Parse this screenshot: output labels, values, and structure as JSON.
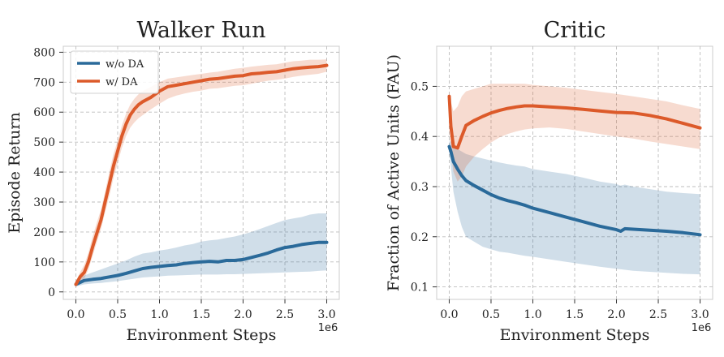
{
  "chart_data": [
    {
      "type": "line",
      "title": "Walker Run",
      "xlabel": "Environment Steps",
      "ylabel": "Episode Return",
      "x_offset_label": "1e6",
      "xlim": [
        -0.15,
        3.15
      ],
      "ylim": [
        -25,
        820
      ],
      "xticks": [
        0.0,
        0.5,
        1.0,
        1.5,
        2.0,
        2.5,
        3.0
      ],
      "xtick_labels": [
        "0.0",
        "0.5",
        "1.0",
        "1.5",
        "2.0",
        "2.5",
        "3.0"
      ],
      "yticks": [
        0,
        100,
        200,
        300,
        400,
        500,
        600,
        700,
        800
      ],
      "ytick_labels": [
        "0",
        "100",
        "200",
        "300",
        "400",
        "500",
        "600",
        "700",
        "800"
      ],
      "grid": true,
      "legend": {
        "position": "top-left",
        "entries": [
          "w/o DA",
          "w/ DA"
        ]
      },
      "series": [
        {
          "name": "w/o DA",
          "color": "#2a6a9a",
          "x": [
            0.0,
            0.1,
            0.2,
            0.3,
            0.4,
            0.5,
            0.6,
            0.7,
            0.8,
            0.9,
            1.0,
            1.1,
            1.2,
            1.3,
            1.4,
            1.5,
            1.6,
            1.7,
            1.8,
            1.9,
            2.0,
            2.1,
            2.2,
            2.3,
            2.4,
            2.5,
            2.6,
            2.7,
            2.8,
            2.9,
            3.0
          ],
          "values": [
            25,
            38,
            42,
            45,
            50,
            55,
            62,
            70,
            78,
            82,
            85,
            88,
            90,
            95,
            98,
            100,
            102,
            100,
            105,
            105,
            108,
            115,
            122,
            130,
            140,
            148,
            152,
            158,
            162,
            165,
            165
          ],
          "lower": [
            18,
            25,
            28,
            30,
            33,
            36,
            40,
            44,
            48,
            50,
            52,
            54,
            55,
            56,
            57,
            58,
            58,
            58,
            59,
            59,
            60,
            61,
            62,
            63,
            64,
            65,
            66,
            67,
            68,
            70,
            72
          ],
          "upper": [
            35,
            55,
            65,
            75,
            85,
            95,
            105,
            118,
            128,
            132,
            138,
            142,
            148,
            155,
            160,
            168,
            172,
            175,
            180,
            185,
            192,
            200,
            210,
            220,
            230,
            240,
            245,
            250,
            258,
            262,
            262
          ]
        },
        {
          "name": "w/ DA",
          "color": "#dc5a2a",
          "x": [
            0.0,
            0.05,
            0.1,
            0.15,
            0.2,
            0.25,
            0.3,
            0.35,
            0.4,
            0.45,
            0.5,
            0.55,
            0.6,
            0.65,
            0.7,
            0.75,
            0.8,
            0.9,
            1.0,
            1.1,
            1.2,
            1.3,
            1.4,
            1.5,
            1.6,
            1.7,
            1.8,
            1.9,
            2.0,
            2.1,
            2.2,
            2.3,
            2.4,
            2.5,
            2.6,
            2.7,
            2.8,
            2.9,
            3.0
          ],
          "values": [
            25,
            50,
            65,
            100,
            150,
            195,
            240,
            300,
            360,
            420,
            470,
            520,
            560,
            590,
            610,
            625,
            635,
            650,
            670,
            685,
            690,
            695,
            700,
            705,
            710,
            712,
            716,
            720,
            722,
            728,
            730,
            733,
            735,
            740,
            745,
            748,
            750,
            752,
            756
          ],
          "lower": [
            18,
            35,
            45,
            75,
            120,
            165,
            210,
            265,
            320,
            380,
            430,
            480,
            520,
            548,
            566,
            580,
            590,
            610,
            628,
            645,
            655,
            662,
            668,
            672,
            678,
            680,
            684,
            688,
            690,
            695,
            700,
            705,
            708,
            712,
            718,
            722,
            725,
            728,
            735
          ],
          "upper": [
            32,
            65,
            90,
            130,
            185,
            230,
            275,
            335,
            400,
            460,
            505,
            555,
            595,
            625,
            645,
            660,
            670,
            685,
            700,
            712,
            716,
            720,
            724,
            728,
            732,
            735,
            740,
            745,
            748,
            752,
            755,
            758,
            760,
            765,
            770,
            772,
            775,
            775,
            776
          ]
        }
      ]
    },
    {
      "type": "line",
      "title": "Critic",
      "xlabel": "Environment Steps",
      "ylabel": "Fraction of Active Units (FAU)",
      "x_offset_label": "1e6",
      "xlim": [
        -0.15,
        3.15
      ],
      "ylim": [
        0.075,
        0.58
      ],
      "xticks": [
        0.0,
        0.5,
        1.0,
        1.5,
        2.0,
        2.5,
        3.0
      ],
      "xtick_labels": [
        "0.0",
        "0.5",
        "1.0",
        "1.5",
        "2.0",
        "2.5",
        "3.0"
      ],
      "yticks": [
        0.1,
        0.2,
        0.3,
        0.4,
        0.5
      ],
      "ytick_labels": [
        "0.1",
        "0.2",
        "0.3",
        "0.4",
        "0.5"
      ],
      "grid": true,
      "series": [
        {
          "name": "w/o DA",
          "color": "#2a6a9a",
          "x": [
            0.0,
            0.02,
            0.05,
            0.1,
            0.15,
            0.2,
            0.3,
            0.4,
            0.5,
            0.6,
            0.7,
            0.8,
            0.9,
            1.0,
            1.2,
            1.4,
            1.6,
            1.8,
            2.0,
            2.05,
            2.1,
            2.2,
            2.4,
            2.6,
            2.8,
            3.0
          ],
          "values": [
            0.38,
            0.37,
            0.35,
            0.335,
            0.322,
            0.312,
            0.302,
            0.293,
            0.284,
            0.277,
            0.272,
            0.268,
            0.263,
            0.257,
            0.248,
            0.239,
            0.23,
            0.221,
            0.214,
            0.211,
            0.216,
            0.215,
            0.213,
            0.211,
            0.208,
            0.204
          ],
          "lower": [
            0.37,
            0.34,
            0.29,
            0.25,
            0.22,
            0.2,
            0.19,
            0.18,
            0.175,
            0.17,
            0.168,
            0.165,
            0.162,
            0.16,
            0.155,
            0.15,
            0.145,
            0.14,
            0.136,
            0.135,
            0.134,
            0.132,
            0.13,
            0.128,
            0.126,
            0.125
          ],
          "upper": [
            0.39,
            0.39,
            0.385,
            0.375,
            0.37,
            0.365,
            0.36,
            0.356,
            0.352,
            0.348,
            0.345,
            0.342,
            0.34,
            0.335,
            0.33,
            0.325,
            0.318,
            0.31,
            0.305,
            0.302,
            0.304,
            0.3,
            0.295,
            0.29,
            0.287,
            0.285
          ]
        },
        {
          "name": "w/ DA",
          "color": "#dc5a2a",
          "x": [
            0.0,
            0.02,
            0.05,
            0.1,
            0.15,
            0.2,
            0.3,
            0.4,
            0.5,
            0.6,
            0.7,
            0.8,
            0.9,
            1.0,
            1.2,
            1.4,
            1.6,
            1.8,
            2.0,
            2.2,
            2.4,
            2.6,
            2.8,
            3.0
          ],
          "values": [
            0.48,
            0.42,
            0.38,
            0.377,
            0.4,
            0.422,
            0.432,
            0.44,
            0.447,
            0.452,
            0.456,
            0.459,
            0.461,
            0.461,
            0.459,
            0.457,
            0.454,
            0.451,
            0.448,
            0.447,
            0.442,
            0.435,
            0.426,
            0.417
          ],
          "lower": [
            0.47,
            0.37,
            0.33,
            0.31,
            0.32,
            0.34,
            0.36,
            0.375,
            0.388,
            0.398,
            0.405,
            0.41,
            0.414,
            0.416,
            0.418,
            0.415,
            0.41,
            0.405,
            0.4,
            0.396,
            0.39,
            0.385,
            0.38,
            0.375
          ],
          "upper": [
            0.49,
            0.47,
            0.45,
            0.46,
            0.48,
            0.49,
            0.495,
            0.5,
            0.505,
            0.505,
            0.505,
            0.505,
            0.505,
            0.503,
            0.5,
            0.497,
            0.493,
            0.489,
            0.485,
            0.48,
            0.475,
            0.47,
            0.462,
            0.455
          ]
        }
      ]
    }
  ]
}
